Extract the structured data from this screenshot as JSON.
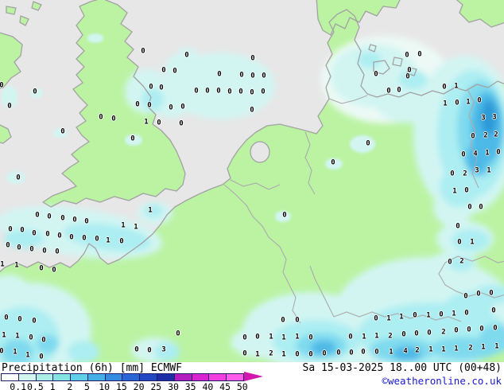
{
  "map": {
    "region_label": "western-europe",
    "colors": {
      "sea": "#e7e7e7",
      "land": "#bbf3a3",
      "coast": "#a2a2a2",
      "precip_trace": "#ecf9f5",
      "precip_light": "#d2f5f2",
      "precip_cyan": "#aceef2",
      "precip_blue1": "#7fdaee",
      "precip_blue2": "#4db9e6",
      "precip_blue3": "#2f9ad8",
      "value_text": "#000000"
    },
    "values": [
      [
        180,
        65,
        "0"
      ],
      [
        235,
        70,
        "0"
      ],
      [
        318,
        74,
        "0"
      ],
      [
        206,
        89,
        "0"
      ],
      [
        220,
        90,
        "0"
      ],
      [
        276,
        94,
        "0"
      ],
      [
        304,
        95,
        "0"
      ],
      [
        318,
        96,
        "0"
      ],
      [
        332,
        96,
        "0"
      ],
      [
        2,
        108,
        "0"
      ],
      [
        190,
        110,
        "0"
      ],
      [
        203,
        111,
        "0"
      ],
      [
        44,
        116,
        "0"
      ],
      [
        247,
        115,
        "0"
      ],
      [
        261,
        115,
        "0"
      ],
      [
        275,
        115,
        "0"
      ],
      [
        289,
        116,
        "0"
      ],
      [
        303,
        116,
        "0"
      ],
      [
        317,
        117,
        "0"
      ],
      [
        331,
        116,
        "0"
      ],
      [
        12,
        134,
        "0"
      ],
      [
        173,
        132,
        "0"
      ],
      [
        188,
        133,
        "0"
      ],
      [
        215,
        136,
        "0"
      ],
      [
        230,
        135,
        "0"
      ],
      [
        317,
        139,
        "0"
      ],
      [
        127,
        148,
        "0"
      ],
      [
        143,
        150,
        "0"
      ],
      [
        184,
        154,
        "1"
      ],
      [
        200,
        155,
        "0"
      ],
      [
        228,
        156,
        "0"
      ],
      [
        512,
        70,
        "0"
      ],
      [
        528,
        69,
        "0"
      ],
      [
        473,
        94,
        "0"
      ],
      [
        515,
        89,
        "0"
      ],
      [
        513,
        97,
        "0"
      ],
      [
        489,
        115,
        "0"
      ],
      [
        502,
        114,
        "0"
      ],
      [
        559,
        110,
        "0"
      ],
      [
        574,
        109,
        "1"
      ],
      [
        560,
        131,
        "1"
      ],
      [
        575,
        130,
        "0"
      ],
      [
        589,
        129,
        "1"
      ],
      [
        603,
        127,
        "0"
      ],
      [
        608,
        149,
        "3"
      ],
      [
        622,
        148,
        "3"
      ],
      [
        595,
        172,
        "0"
      ],
      [
        611,
        171,
        "2"
      ],
      [
        624,
        170,
        "2"
      ],
      [
        583,
        195,
        "0"
      ],
      [
        598,
        194,
        "4"
      ],
      [
        613,
        193,
        "1"
      ],
      [
        627,
        192,
        "0"
      ],
      [
        569,
        219,
        "0"
      ],
      [
        585,
        219,
        "2"
      ],
      [
        600,
        215,
        "3"
      ],
      [
        615,
        215,
        "1"
      ],
      [
        572,
        241,
        "1"
      ],
      [
        587,
        240,
        "0"
      ],
      [
        591,
        261,
        "0"
      ],
      [
        605,
        261,
        "0"
      ],
      [
        576,
        285,
        "0"
      ],
      [
        578,
        305,
        "0"
      ],
      [
        594,
        305,
        "1"
      ],
      [
        79,
        166,
        "0"
      ],
      [
        167,
        175,
        "0"
      ],
      [
        23,
        224,
        "0"
      ],
      [
        419,
        205,
        "0"
      ],
      [
        463,
        181,
        "0"
      ],
      [
        358,
        271,
        "0"
      ],
      [
        189,
        265,
        "1"
      ],
      [
        47,
        271,
        "0"
      ],
      [
        62,
        273,
        "0"
      ],
      [
        79,
        275,
        "0"
      ],
      [
        94,
        277,
        "0"
      ],
      [
        109,
        279,
        "0"
      ],
      [
        155,
        284,
        "1"
      ],
      [
        171,
        286,
        "1"
      ],
      [
        13,
        289,
        "0"
      ],
      [
        28,
        290,
        "0"
      ],
      [
        43,
        294,
        "0"
      ],
      [
        60,
        295,
        "0"
      ],
      [
        75,
        297,
        "0"
      ],
      [
        90,
        299,
        "0"
      ],
      [
        106,
        300,
        "0"
      ],
      [
        122,
        301,
        "0"
      ],
      [
        136,
        303,
        "1"
      ],
      [
        153,
        304,
        "0"
      ],
      [
        10,
        309,
        "0"
      ],
      [
        24,
        312,
        "0"
      ],
      [
        40,
        314,
        "0"
      ],
      [
        56,
        316,
        "0"
      ],
      [
        72,
        317,
        "0"
      ],
      [
        3,
        333,
        "1"
      ],
      [
        21,
        334,
        "1"
      ],
      [
        52,
        338,
        "0"
      ],
      [
        68,
        340,
        "0"
      ],
      [
        8,
        400,
        "0"
      ],
      [
        25,
        402,
        "0"
      ],
      [
        43,
        404,
        "0"
      ],
      [
        5,
        422,
        "1"
      ],
      [
        22,
        423,
        "1"
      ],
      [
        39,
        425,
        "0"
      ],
      [
        55,
        428,
        "0"
      ],
      [
        2,
        442,
        "0"
      ],
      [
        19,
        443,
        "1"
      ],
      [
        35,
        447,
        "1"
      ],
      [
        52,
        449,
        "0"
      ],
      [
        172,
        440,
        "0"
      ],
      [
        188,
        441,
        "0"
      ],
      [
        206,
        440,
        "3"
      ],
      [
        224,
        420,
        "0"
      ],
      [
        356,
        403,
        "0"
      ],
      [
        374,
        403,
        "0"
      ],
      [
        308,
        425,
        "0"
      ],
      [
        324,
        424,
        "0"
      ],
      [
        341,
        424,
        "1"
      ],
      [
        357,
        425,
        "1"
      ],
      [
        374,
        424,
        "1"
      ],
      [
        391,
        425,
        "0"
      ],
      [
        308,
        445,
        "0"
      ],
      [
        324,
        446,
        "1"
      ],
      [
        341,
        445,
        "2"
      ],
      [
        357,
        446,
        "1"
      ],
      [
        374,
        446,
        "0"
      ],
      [
        391,
        446,
        "0"
      ],
      [
        408,
        445,
        "0"
      ],
      [
        566,
        330,
        "0"
      ],
      [
        581,
        329,
        "2"
      ],
      [
        586,
        373,
        "0"
      ],
      [
        602,
        370,
        "0"
      ],
      [
        618,
        369,
        "0"
      ],
      [
        587,
        394,
        "0"
      ],
      [
        621,
        391,
        "0"
      ],
      [
        473,
        401,
        "0"
      ],
      [
        489,
        401,
        "1"
      ],
      [
        505,
        399,
        "1"
      ],
      [
        522,
        397,
        "0"
      ],
      [
        539,
        397,
        "1"
      ],
      [
        555,
        396,
        "0"
      ],
      [
        571,
        395,
        "1"
      ],
      [
        441,
        424,
        "0"
      ],
      [
        458,
        424,
        "1"
      ],
      [
        474,
        423,
        "1"
      ],
      [
        491,
        423,
        "2"
      ],
      [
        508,
        421,
        "0"
      ],
      [
        524,
        420,
        "0"
      ],
      [
        540,
        419,
        "0"
      ],
      [
        558,
        418,
        "2"
      ],
      [
        574,
        416,
        "0"
      ],
      [
        590,
        415,
        "0"
      ],
      [
        606,
        414,
        "0"
      ],
      [
        623,
        413,
        "0"
      ],
      [
        426,
        444,
        "0"
      ],
      [
        442,
        444,
        "0"
      ],
      [
        457,
        443,
        "0"
      ],
      [
        474,
        443,
        "0"
      ],
      [
        492,
        443,
        "1"
      ],
      [
        510,
        442,
        "4"
      ],
      [
        525,
        441,
        "2"
      ],
      [
        542,
        440,
        "1"
      ],
      [
        558,
        440,
        "1"
      ],
      [
        574,
        439,
        "1"
      ],
      [
        592,
        438,
        "2"
      ],
      [
        608,
        437,
        "1"
      ],
      [
        625,
        436,
        "1"
      ]
    ]
  },
  "footer": {
    "title": "Precipitation (6h)",
    "unit": "[mm]",
    "model": "ECMWF",
    "datetime": "Sa 15-03-2025 18..00 UTC (00+48)",
    "copyright": "©weatheronline.co.uk",
    "scale": {
      "arrow_color": "#d316ae",
      "segments": [
        {
          "label": "0.1",
          "color": "#fcfffc"
        },
        {
          "label": "0.5",
          "color": "#d2f6ee"
        },
        {
          "label": "1",
          "color": "#aceee6"
        },
        {
          "label": "2",
          "color": "#84e4e2"
        },
        {
          "label": "5",
          "color": "#60cfe8"
        },
        {
          "label": "10",
          "color": "#44afe6"
        },
        {
          "label": "15",
          "color": "#348ce2"
        },
        {
          "label": "20",
          "color": "#2b66d6"
        },
        {
          "label": "25",
          "color": "#2346c2"
        },
        {
          "label": "30",
          "color": "#1c2da6"
        },
        {
          "label": "35",
          "color": "#b51cbe"
        },
        {
          "label": "40",
          "color": "#da23d0"
        },
        {
          "label": "45",
          "color": "#f33ee2"
        },
        {
          "label": "50",
          "color": "#ff5cea"
        }
      ]
    }
  }
}
